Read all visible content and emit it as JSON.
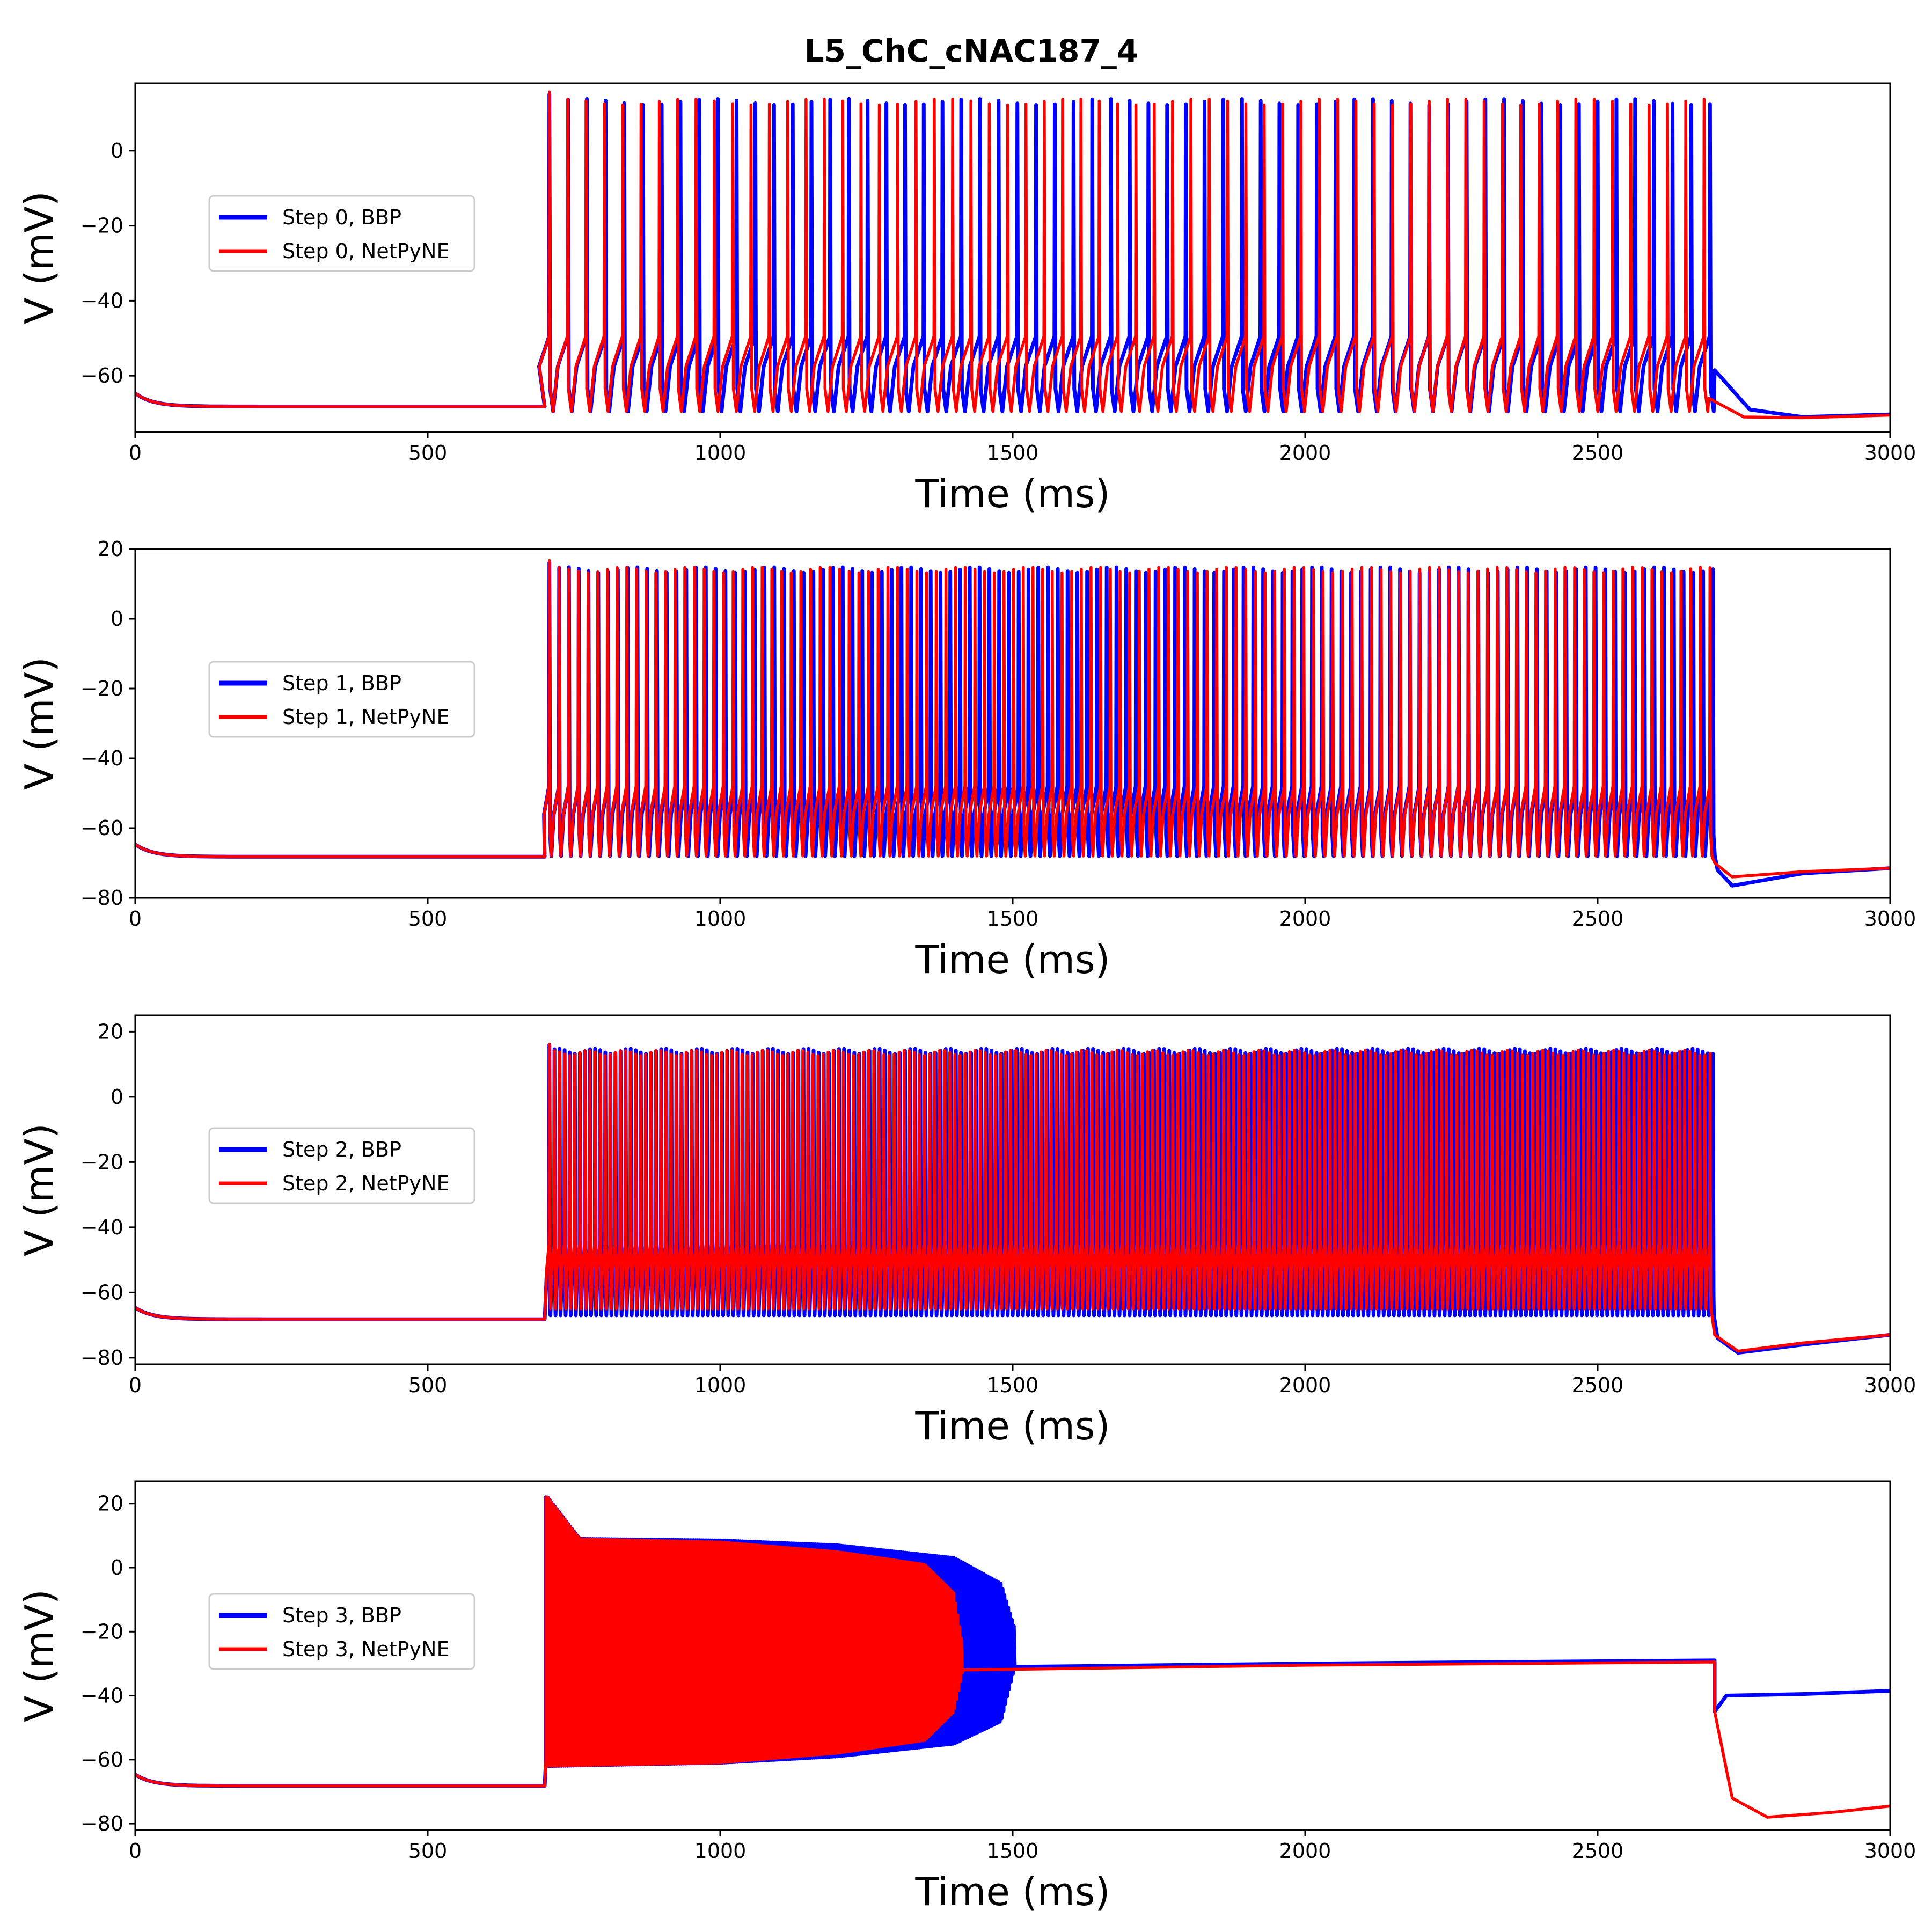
{
  "figure": {
    "title": "L5_ChC_cNAC187_4"
  },
  "colors": {
    "bbp": "#0000ff",
    "netpyne": "#ff0000"
  },
  "chart_data": [
    {
      "type": "line",
      "xlabel": "Time (ms)",
      "ylabel": "V (mV)",
      "xlim": [
        0,
        3000
      ],
      "ylim": [
        -75,
        18
      ],
      "xticks": [
        0,
        500,
        1000,
        1500,
        2000,
        2500,
        3000
      ],
      "yticks": [
        -60,
        -40,
        -20,
        0
      ],
      "legend_position": "center-left",
      "series": [
        {
          "name": "Step 0, BBP",
          "color": "#0000ff",
          "resting_mV": -68.2,
          "stim_start_ms": 700,
          "stim_end_ms": 2700,
          "spike_count": 63,
          "spike_peak_mV": 13,
          "trough_mV": -69.5,
          "post_stim": [
            [
              2700,
              -58.5
            ],
            [
              2760,
              -69
            ],
            [
              2850,
              -71
            ],
            [
              3000,
              -70.3
            ]
          ]
        },
        {
          "name": "Step 0, NetPyNE",
          "color": "#ff0000",
          "resting_mV": -68.2,
          "stim_start_ms": 700,
          "stim_end_ms": 2690,
          "spike_count": 64,
          "spike_peak_mV": 13,
          "trough_mV": -69.5,
          "post_stim": [
            [
              2690,
              -66
            ],
            [
              2750,
              -71
            ],
            [
              2850,
              -71.2
            ],
            [
              3000,
              -70.5
            ]
          ]
        }
      ]
    },
    {
      "type": "line",
      "xlabel": "Time (ms)",
      "ylabel": "V (mV)",
      "xlim": [
        0,
        3000
      ],
      "ylim": [
        -80,
        20
      ],
      "xticks": [
        0,
        500,
        1000,
        1500,
        2000,
        2500,
        3000
      ],
      "yticks": [
        -80,
        -60,
        -40,
        -20,
        0,
        20
      ],
      "legend_position": "center-left",
      "series": [
        {
          "name": "Step 1, BBP",
          "color": "#0000ff",
          "resting_mV": -68.2,
          "stim_start_ms": 700,
          "stim_end_ms": 2705,
          "spike_count": 120,
          "spike_peak_mV": 14,
          "trough_mV": -68,
          "post_stim": [
            [
              2705,
              -72
            ],
            [
              2730,
              -76.5
            ],
            [
              2850,
              -73
            ],
            [
              3000,
              -71.5
            ]
          ]
        },
        {
          "name": "Step 1, NetPyNE",
          "color": "#ff0000",
          "resting_mV": -68.2,
          "stim_start_ms": 700,
          "stim_end_ms": 2700,
          "spike_count": 121,
          "spike_peak_mV": 14,
          "trough_mV": -68,
          "post_stim": [
            [
              2700,
              -70
            ],
            [
              2730,
              -74
            ],
            [
              2850,
              -72.5
            ],
            [
              3000,
              -71.5
            ]
          ]
        }
      ]
    },
    {
      "type": "line",
      "xlabel": "Time (ms)",
      "ylabel": "V (mV)",
      "xlim": [
        0,
        3000
      ],
      "ylim": [
        -82,
        25
      ],
      "xticks": [
        0,
        500,
        1000,
        1500,
        2000,
        2500,
        3000
      ],
      "yticks": [
        -80,
        -60,
        -40,
        -20,
        0,
        20
      ],
      "legend_position": "center-left",
      "series": [
        {
          "name": "Step 2, BBP",
          "color": "#0000ff",
          "resting_mV": -68.2,
          "stim_start_ms": 700,
          "stim_end_ms": 2705,
          "spike_count": 230,
          "spike_peak_mV": 14,
          "trough_mV": -67,
          "post_stim": [
            [
              2705,
              -74
            ],
            [
              2740,
              -78.5
            ],
            [
              2850,
              -76
            ],
            [
              3000,
              -73
            ]
          ]
        },
        {
          "name": "Step 2, NetPyNE",
          "color": "#ff0000",
          "resting_mV": -68.2,
          "stim_start_ms": 700,
          "stim_end_ms": 2700,
          "spike_count": 230,
          "spike_peak_mV": 13.5,
          "trough_mV": -65,
          "post_stim": [
            [
              2700,
              -73
            ],
            [
              2740,
              -78
            ],
            [
              2850,
              -75.5
            ],
            [
              3000,
              -73
            ]
          ]
        }
      ]
    },
    {
      "type": "line",
      "xlabel": "Time (ms)",
      "ylabel": "V (mV)",
      "xlim": [
        0,
        3000
      ],
      "ylim": [
        -82,
        27
      ],
      "xticks": [
        0,
        500,
        1000,
        1500,
        2000,
        2500,
        3000
      ],
      "yticks": [
        -80,
        -60,
        -40,
        -20,
        0,
        20
      ],
      "legend_position": "center-left",
      "series": [
        {
          "name": "Step 3, BBP",
          "color": "#0000ff",
          "resting_mV": -68.2,
          "stim_start_ms": 700,
          "oscillation_end_ms": 1505,
          "envelope_upper": [
            [
              705,
              22
            ],
            [
              760,
              9
            ],
            [
              1000,
              8.5
            ],
            [
              1200,
              7
            ],
            [
              1400,
              3
            ],
            [
              1480,
              -5
            ],
            [
              1505,
              -20
            ]
          ],
          "envelope_lower": [
            [
              705,
              -62
            ],
            [
              1000,
              -61
            ],
            [
              1200,
              -59
            ],
            [
              1400,
              -55
            ],
            [
              1480,
              -48
            ],
            [
              1505,
              -30
            ]
          ],
          "plateau": [
            [
              1505,
              -31
            ],
            [
              2000,
              -30
            ],
            [
              2700,
              -29
            ]
          ],
          "post_stim": [
            [
              2700,
              -45
            ],
            [
              2720,
              -40
            ],
            [
              2850,
              -39.5
            ],
            [
              3000,
              -38.5
            ]
          ]
        },
        {
          "name": "Step 3, NetPyNE",
          "color": "#ff0000",
          "resting_mV": -68.2,
          "stim_start_ms": 700,
          "oscillation_end_ms": 1415,
          "envelope_upper": [
            [
              705,
              22
            ],
            [
              760,
              9
            ],
            [
              1000,
              8
            ],
            [
              1200,
              5
            ],
            [
              1350,
              1
            ],
            [
              1400,
              -8
            ],
            [
              1415,
              -25
            ]
          ],
          "envelope_lower": [
            [
              705,
              -62
            ],
            [
              1000,
              -61
            ],
            [
              1200,
              -58
            ],
            [
              1350,
              -54
            ],
            [
              1400,
              -45
            ],
            [
              1415,
              -32
            ]
          ],
          "plateau": [
            [
              1415,
              -32
            ],
            [
              2000,
              -30.5
            ],
            [
              2700,
              -29.5
            ]
          ],
          "post_stim": [
            [
              2700,
              -45
            ],
            [
              2730,
              -72
            ],
            [
              2790,
              -78
            ],
            [
              2900,
              -76.5
            ],
            [
              3000,
              -74.5
            ]
          ]
        }
      ]
    }
  ]
}
